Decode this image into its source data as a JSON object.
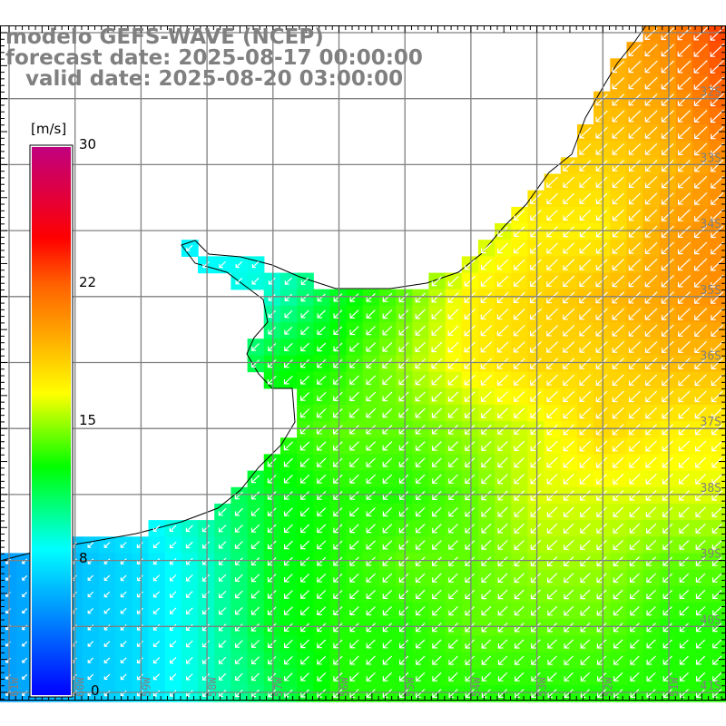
{
  "title": {
    "model": "modelo GEFS-WAVE (NCEP)",
    "forecast": "forecast date: 2025-08-17 00:00:00",
    "valid": "  valid date: 2025-08-20 03:00:00"
  },
  "colorbar": {
    "unit": "[m/s]",
    "min": 0,
    "max": 30,
    "tick_labels": [
      "30",
      "22",
      "15",
      "8",
      "0"
    ],
    "tick_values": [
      30,
      22,
      15,
      8,
      0
    ],
    "stops": [
      {
        "v": 0,
        "c": "#0000ff"
      },
      {
        "v": 4,
        "c": "#0080ff"
      },
      {
        "v": 8,
        "c": "#00ffff"
      },
      {
        "v": 12.5,
        "c": "#00ff00"
      },
      {
        "v": 16.5,
        "c": "#ffff00"
      },
      {
        "v": 20,
        "c": "#ffa000"
      },
      {
        "v": 22.5,
        "c": "#ff6000"
      },
      {
        "v": 25,
        "c": "#ff0000"
      },
      {
        "v": 30,
        "c": "#c0007f"
      }
    ]
  },
  "lat_labels": [
    "32S",
    "33S",
    "34S",
    "35S",
    "36S",
    "37S",
    "38S",
    "39S",
    "40S",
    "41S"
  ],
  "lon_labels": [
    "61W",
    "60W",
    "59W",
    "58W",
    "57W",
    "56W",
    "55W",
    "54W",
    "53W",
    "52W",
    "51W"
  ],
  "wind_field": {
    "units": "m/s",
    "direction": "towards SW",
    "lons": [
      -61,
      -60,
      -59,
      -58,
      -57,
      -56,
      -55,
      -54,
      -53,
      -52,
      -51,
      -50
    ],
    "lats": [
      -31,
      -32,
      -33,
      -34,
      -35,
      -36,
      -37,
      -38,
      -39,
      -40,
      -41
    ],
    "speed": [
      [
        8,
        8,
        8,
        8,
        8,
        10,
        13,
        16,
        18,
        19,
        21,
        24
      ],
      [
        8,
        8,
        8,
        8,
        8,
        10,
        13,
        16,
        19,
        19,
        20,
        23
      ],
      [
        8,
        8,
        8,
        8,
        8,
        10,
        13,
        16,
        18,
        18,
        19,
        21
      ],
      [
        7,
        7,
        7,
        8,
        8,
        10,
        13,
        15,
        17,
        17,
        20,
        21
      ],
      [
        7,
        7,
        7,
        8,
        9,
        12,
        14,
        17,
        18,
        19,
        20,
        21
      ],
      [
        7,
        7,
        8,
        9,
        12,
        13,
        15,
        17,
        18,
        18,
        19,
        19
      ],
      [
        7,
        7,
        8,
        9,
        13,
        14,
        14,
        15,
        16,
        18,
        17,
        17
      ],
      [
        6,
        7,
        8,
        10,
        12,
        13,
        13,
        14,
        16,
        16,
        16,
        16
      ],
      [
        5,
        6,
        7,
        9,
        12,
        13,
        14,
        14,
        15,
        15,
        14,
        14
      ],
      [
        5,
        6,
        7,
        9,
        12,
        13,
        13,
        14,
        14,
        14,
        13,
        13
      ],
      [
        5,
        6,
        7,
        9,
        11,
        13,
        13,
        13,
        13,
        13,
        13,
        13
      ]
    ]
  }
}
